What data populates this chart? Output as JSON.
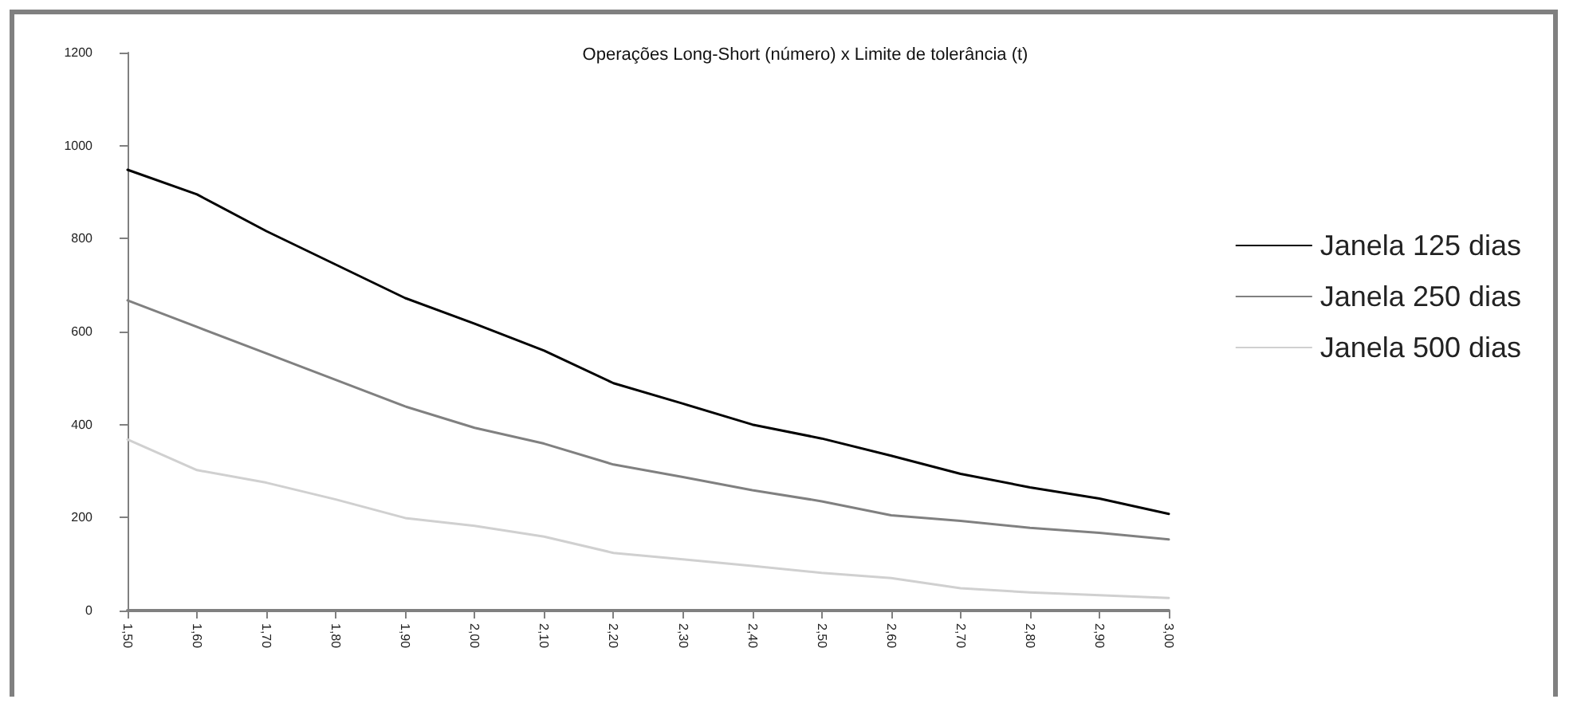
{
  "chart_data": {
    "type": "line",
    "title": "Operações Long-Short (número) x Limite de tolerância (t)",
    "categories": [
      "1,50",
      "1,60",
      "1,70",
      "1,80",
      "1,90",
      "2,00",
      "2,10",
      "2,20",
      "2,30",
      "2,40",
      "2,50",
      "2,60",
      "2,70",
      "2,80",
      "2,90",
      "3,00"
    ],
    "series": [
      {
        "name": "Janela 125 dias",
        "color": "#000000",
        "values": [
          948,
          895,
          816,
          744,
          672,
          617,
          559,
          489,
          445,
          400,
          370,
          333,
          294,
          265,
          241,
          208
        ]
      },
      {
        "name": "Janela 250 dias",
        "color": "#808080",
        "values": [
          667,
          610,
          553,
          496,
          439,
          393,
          359,
          314,
          287,
          259,
          235,
          205,
          193,
          178,
          167,
          153
        ]
      },
      {
        "name": "Janela 500 dias",
        "color": "#d0d0d0",
        "values": [
          368,
          302,
          275,
          239,
          199,
          182,
          159,
          124,
          110,
          96,
          81,
          70,
          48,
          39,
          33,
          27
        ]
      }
    ],
    "ylim": [
      0,
      1200
    ],
    "yticks": [
      0,
      200,
      400,
      600,
      800,
      1000,
      1200
    ],
    "legend": "right"
  }
}
